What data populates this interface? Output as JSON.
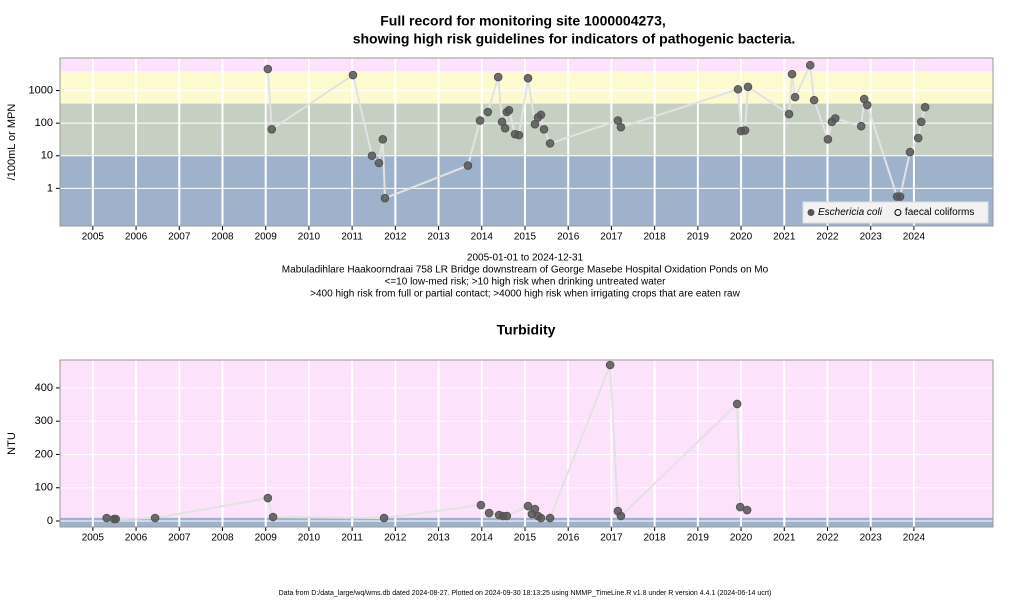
{
  "chart_data": [
    {
      "type": "line",
      "title_lines": [
        "Full record for monitoring site 1000004273,",
        "showing high risk guidelines for indicators of pathogenic bacteria."
      ],
      "y_label": "/100mL or MPN",
      "y_log": true,
      "ylim": [
        0.07,
        10000
      ],
      "yticks": [
        1,
        10,
        100,
        1000
      ],
      "xlim": [
        2004.24,
        2025.83
      ],
      "xticks": [
        2005,
        2006,
        2007,
        2008,
        2009,
        2010,
        2011,
        2012,
        2013,
        2014,
        2015,
        2016,
        2017,
        2018,
        2019,
        2020,
        2021,
        2022,
        2023,
        2024
      ],
      "grid": true,
      "legend": "bottomright",
      "bands": [
        {
          "to": 10,
          "color": "#9fb2cc"
        },
        {
          "from": 10,
          "to": 400,
          "color": "#c5cfc2"
        },
        {
          "from": 400,
          "to": 4000,
          "color": "#fdfad0"
        },
        {
          "from": 4000,
          "color": "#fce2fb"
        }
      ],
      "annotations": [
        "2005-01-01 to 2024-12-31",
        "Mabuladihlare Haakoorndraai 758 LR Bridge downstream of George Masebe Hospital Oxidation Ponds on Mo",
        "<=10 low-med risk; >10 high risk when drinking untreated water",
        ">400 high risk from full or partial contact; >4000 high risk when irrigating crops that are eaten raw"
      ],
      "series": [
        {
          "name": "Eschericia coli",
          "color": "#555555",
          "line_color": "#e2e2e2",
          "filled": true,
          "x": [
            2009.05,
            2009.14,
            2011.02,
            2011.46,
            2011.62,
            2011.71,
            2011.76,
            2013.68,
            2013.96,
            2014.14,
            2014.38,
            2014.47,
            2014.54,
            2014.58,
            2014.63,
            2014.77,
            2014.86,
            2015.07,
            2015.23,
            2015.3,
            2015.37,
            2015.44,
            2015.58,
            2017.15,
            2017.22,
            2019.93,
            2020.0,
            2020.09,
            2020.16,
            2021.11,
            2021.18,
            2021.25,
            2021.6,
            2021.69,
            2022.01,
            2022.1,
            2022.18,
            2022.78,
            2022.85,
            2022.92,
            2023.61,
            2023.68,
            2023.91,
            2024.1,
            2024.17,
            2024.26
          ],
          "values": [
            4600,
            65,
            3000,
            10,
            6,
            32,
            0.5,
            5,
            120,
            220,
            2600,
            110,
            70,
            220,
            250,
            46,
            43,
            2400,
            93,
            150,
            180,
            65,
            24,
            120,
            75,
            1100,
            57,
            60,
            1300,
            190,
            3200,
            630,
            6000,
            510,
            32,
            110,
            140,
            81,
            550,
            360,
            0.56,
            0.56,
            13,
            35,
            110,
            310
          ]
        },
        {
          "name": "faecal coliforms",
          "color": "#555555",
          "filled": false,
          "x": [],
          "values": []
        }
      ]
    },
    {
      "type": "line",
      "title_lines": [
        "Turbidity"
      ],
      "y_label": "NTU",
      "ylim": [
        -18,
        484
      ],
      "yticks": [
        0,
        100,
        200,
        300,
        400
      ],
      "xlim": [
        2004.24,
        2025.83
      ],
      "xticks": [
        2005,
        2006,
        2007,
        2008,
        2009,
        2010,
        2011,
        2012,
        2013,
        2014,
        2015,
        2016,
        2017,
        2018,
        2019,
        2020,
        2021,
        2022,
        2023,
        2024
      ],
      "grid": true,
      "bands": [
        {
          "to": 10,
          "color": "#9fb2cc"
        },
        {
          "from": 10,
          "color": "#fce2fb"
        }
      ],
      "series": [
        {
          "name": "Turbidity",
          "color": "#555555",
          "line_color": "#e2e2e2",
          "filled": true,
          "x": [
            2005.32,
            2005.49,
            2005.53,
            2006.44,
            2009.05,
            2009.17,
            2011.74,
            2013.98,
            2014.17,
            2014.4,
            2014.49,
            2014.58,
            2015.07,
            2015.16,
            2015.23,
            2015.3,
            2015.37,
            2015.58,
            2016.97,
            2017.15,
            2017.22,
            2019.91,
            2019.98,
            2020.14
          ],
          "values": [
            9,
            6,
            6,
            9,
            69,
            12,
            9,
            48,
            24,
            18,
            15,
            15,
            45,
            21,
            36,
            15,
            9,
            9,
            469,
            30,
            15,
            352,
            42,
            33
          ]
        }
      ]
    }
  ],
  "footer": "Data from D:/data_large/wq/wms.db dated 2024-08-27. Plotted on 2024-09-30 18:13:25 using NMMP_TimeLine.R v1.8 under R version 4.4.1 (2024-06-14 ucrt)"
}
